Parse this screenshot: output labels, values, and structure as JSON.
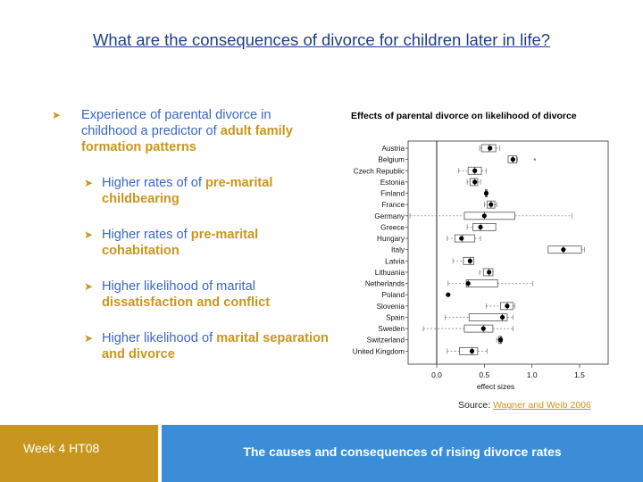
{
  "title": "What are the consequences of divorce for children later in life?",
  "bullets": {
    "b1": [
      "Experience of parental divorce in childhood a predictor of ",
      "adult family formation patterns"
    ],
    "b2": [
      "Higher rates of of ",
      "pre-marital childbearing"
    ],
    "b3": [
      "Higher rates of ",
      "pre-marital cohabitation"
    ],
    "b4": [
      " Higher likelihood of marital ",
      "dissatisfaction and conflict"
    ],
    "b5": [
      "Higher likelihood of ",
      "marital separation and divorce"
    ]
  },
  "chart_data": {
    "type": "boxplot",
    "title": "Effects of parental divorce on likelihood of divorce",
    "xlabel": "effect sizes",
    "xlim": [
      -0.3,
      1.8
    ],
    "xticks": [
      "0.0",
      "0.5",
      "1.0",
      "1.5"
    ],
    "reference_line": 0.0,
    "countries": [
      "Austria",
      "Belgium",
      "Czech Republic",
      "Estonia",
      "Finland",
      "France",
      "Germany",
      "Greece",
      "Hungary",
      "Italy",
      "Latvia",
      "Lithuania",
      "Netherlands",
      "Poland",
      "Slovenia",
      "Spain",
      "Sweden",
      "Switzerland",
      "United Kingdom"
    ],
    "boxes": [
      {
        "wl": 0.45,
        "q1": 0.47,
        "med": 0.55,
        "q3": 0.62,
        "wh": 0.66,
        "est": 0.56
      },
      {
        "wl": 0.75,
        "q1": 0.75,
        "med": 0.8,
        "q3": 0.84,
        "wh": 0.85,
        "est": 0.8,
        "outlier": 1.03
      },
      {
        "wl": 0.23,
        "q1": 0.33,
        "med": 0.4,
        "q3": 0.47,
        "wh": 0.52,
        "est": 0.4
      },
      {
        "wl": 0.32,
        "q1": 0.35,
        "med": 0.4,
        "q3": 0.43,
        "wh": 0.46,
        "est": 0.4
      },
      {
        "wl": 0.51,
        "q1": 0.51,
        "med": 0.52,
        "q3": 0.53,
        "wh": 0.53,
        "est": 0.52
      },
      {
        "wl": 0.5,
        "q1": 0.53,
        "med": 0.57,
        "q3": 0.61,
        "wh": 0.63,
        "est": 0.57
      },
      {
        "wl": -0.28,
        "q1": 0.29,
        "med": 0.5,
        "q3": 0.82,
        "wh": 1.42,
        "est": 0.5
      },
      {
        "wl": 0.32,
        "q1": 0.38,
        "med": 0.46,
        "q3": 0.62,
        "wh": 0.62,
        "est": 0.46
      },
      {
        "wl": 0.11,
        "q1": 0.19,
        "med": 0.27,
        "q3": 0.4,
        "wh": 0.46,
        "est": 0.26
      },
      {
        "wl": 1.17,
        "q1": 1.17,
        "med": 1.33,
        "q3": 1.52,
        "wh": 1.55,
        "est": 1.33
      },
      {
        "wl": 0.17,
        "q1": 0.28,
        "med": 0.35,
        "q3": 0.39,
        "wh": 0.39,
        "est": 0.35
      },
      {
        "wl": 0.45,
        "q1": 0.49,
        "med": 0.55,
        "q3": 0.59,
        "wh": 0.59,
        "est": 0.55
      },
      {
        "wl": 0.12,
        "q1": 0.31,
        "med": 0.33,
        "q3": 0.64,
        "wh": 1.01,
        "est": 0.33
      },
      {
        "wl": 0.12,
        "q1": 0.12,
        "med": 0.12,
        "q3": 0.12,
        "wh": 0.12,
        "est": 0.12
      },
      {
        "wl": 0.52,
        "q1": 0.67,
        "med": 0.74,
        "q3": 0.8,
        "wh": 0.82,
        "est": 0.74
      },
      {
        "wl": 0.09,
        "q1": 0.34,
        "med": 0.69,
        "q3": 0.74,
        "wh": 0.8,
        "est": 0.69
      },
      {
        "wl": -0.14,
        "q1": 0.29,
        "med": 0.49,
        "q3": 0.59,
        "wh": 0.8,
        "est": 0.49
      },
      {
        "wl": 0.63,
        "q1": 0.65,
        "med": 0.67,
        "q3": 0.68,
        "wh": 0.69,
        "est": 0.67
      },
      {
        "wl": 0.11,
        "q1": 0.24,
        "med": 0.37,
        "q3": 0.43,
        "wh": 0.53,
        "est": 0.37
      }
    ]
  },
  "source": {
    "label": "Source: ",
    "link": "Wagner and Weib 2006"
  },
  "footer": {
    "left": "Week 4 HT08",
    "right": "The causes and consequences of rising divorce rates"
  },
  "colors": {
    "accent": "#c8961e",
    "blue": "#3a66c4",
    "footer_blue": "#3a8dd6",
    "title": "#1f3d8f"
  }
}
